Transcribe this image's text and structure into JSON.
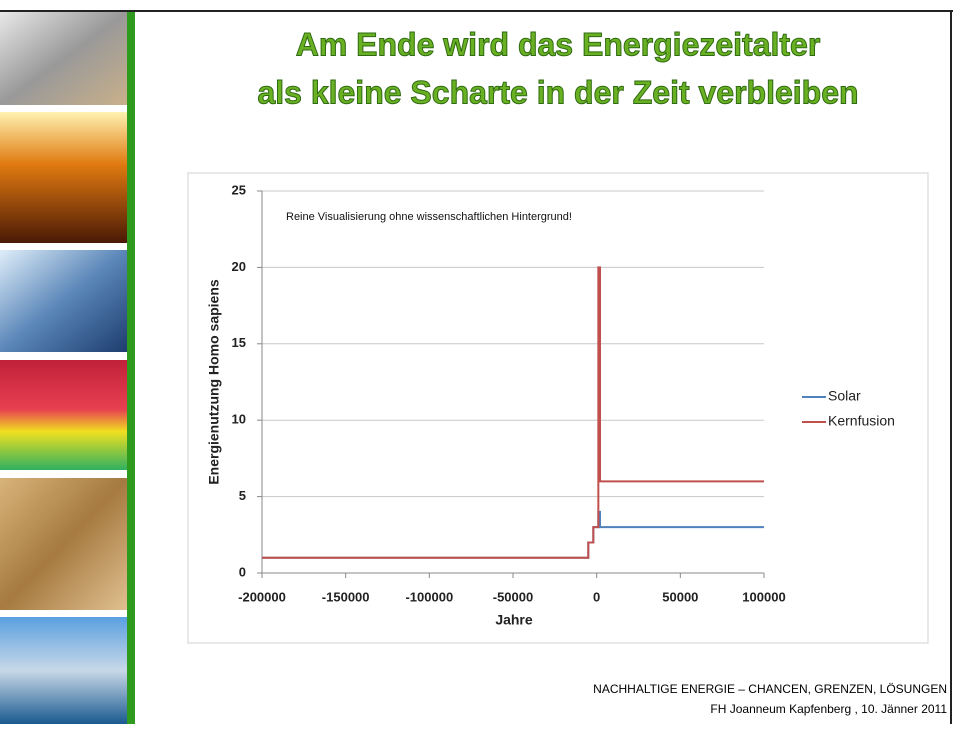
{
  "slide_title": [
    "Am Ende wird das Energiezeitalter",
    "als kleine Scharte in der Zeit verbleiben"
  ],
  "footer": [
    "NACHHALTIGE ENERGIE – CHANCEN, GRENZEN, LÖSUNGEN",
    "FH Joanneum Kapfenberg , 10. Jänner 2011"
  ],
  "chart_data": {
    "type": "line",
    "annotation": "Reine Visualisierung ohne wissenschaftlichen Hintergrund!",
    "x_label": "Jahre",
    "y_label": "Energienutzung Homo sapiens",
    "x": [
      -200000,
      -5000,
      -5000,
      -2000,
      -2000,
      1000,
      1000,
      2000,
      2000,
      100000
    ],
    "series": [
      {
        "name": "Solar",
        "color": "#4f81bd",
        "values": [
          1,
          1,
          2,
          2,
          3,
          3,
          4,
          4,
          3,
          3
        ]
      },
      {
        "name": "Kernfusion",
        "color": "#c0504d",
        "values": [
          1,
          1,
          2,
          2,
          3,
          3,
          20,
          20,
          6,
          6
        ]
      }
    ],
    "xlim": [
      -200000,
      100000
    ],
    "xticks": [
      -200000,
      -150000,
      -100000,
      -50000,
      0,
      50000,
      100000
    ],
    "ylim": [
      0,
      25
    ],
    "yticks": [
      0,
      5,
      10,
      15,
      20,
      25
    ],
    "grid": true,
    "legend": "right"
  }
}
